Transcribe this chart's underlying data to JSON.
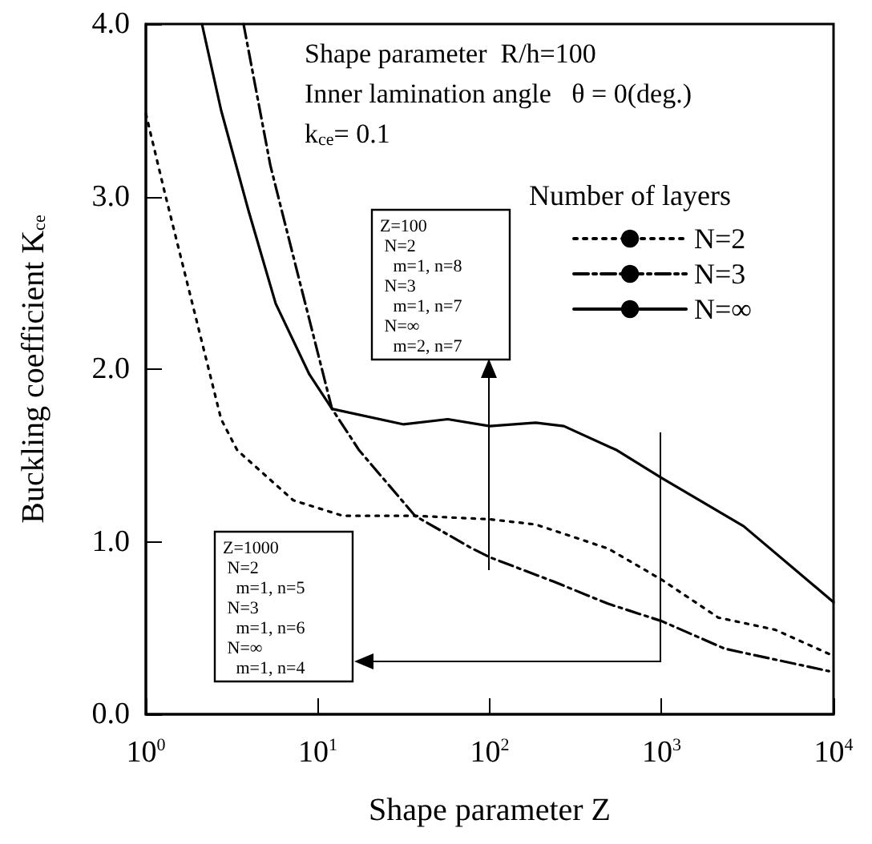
{
  "chart_data": {
    "type": "line",
    "xlabel": "Shape parameter Z",
    "ylabel": "Buckling coefficient K$_{ce}$",
    "legend_title": "Number of layers",
    "annotations": [
      "Shape parameter  R/h=100",
      "Inner lamination angle   θ = 0(deg.)",
      "k$_{ce}$= 0.1",
      "Z=100\n N=2\n   m=1, n=8\n N=3\n   m=1, n=7\n N=∞\n   m=2, n=7",
      "Z=1000\n N=2\n   m=1, n=5\n N=3\n   m=1, n=6\n N=∞\n   m=1, n=4"
    ],
    "series": [
      {
        "name": "N=2",
        "color": "#000000",
        "line_style": "dotted",
        "x": [
          1,
          1.29,
          2.74,
          3.4,
          7.2,
          14,
          37,
          100,
          185,
          490,
          1000,
          2140,
          4570,
          9400
        ],
        "values": [
          3.48,
          3.02,
          1.71,
          1.53,
          1.24,
          1.15,
          1.15,
          1.13,
          1.1,
          0.96,
          0.78,
          0.56,
          0.49,
          0.35
        ]
      },
      {
        "name": "N=3",
        "color": "#000000",
        "line_style": "dashed",
        "x": [
          3.7,
          5.3,
          7.7,
          12.1,
          17.4,
          36.8,
          76,
          100,
          234,
          490,
          1000,
          2330,
          9400
        ],
        "values": [
          4.0,
          3.18,
          2.54,
          1.77,
          1.53,
          1.15,
          0.97,
          0.91,
          0.77,
          0.64,
          0.54,
          0.38,
          0.25
        ]
      },
      {
        "name": "N=∞",
        "color": "#000000",
        "line_style": "solid",
        "x": [
          2.12,
          2.74,
          3.95,
          5.69,
          8.93,
          12.1,
          31.6,
          57,
          100,
          185,
          270,
          550,
          1000,
          3000,
          10000
        ],
        "values": [
          4.0,
          3.5,
          2.92,
          2.38,
          1.97,
          1.77,
          1.68,
          1.71,
          1.67,
          1.69,
          1.67,
          1.53,
          1.37,
          1.09,
          0.65
        ]
      }
    ],
    "xlim": [
      1,
      10000
    ],
    "xticks": [
      {
        "value": 1,
        "label": "10$^{0}$"
      },
      {
        "value": 10,
        "label": "10$^{1}$"
      },
      {
        "value": 100,
        "label": "10$^{2}$"
      },
      {
        "value": 1000,
        "label": "10$^{3}$"
      },
      {
        "value": 10000,
        "label": "10$^{4}$"
      }
    ],
    "ylim": [
      0,
      4
    ],
    "yticks": [
      {
        "value": 0,
        "label": "0.0"
      },
      {
        "value": 1,
        "label": "1.0"
      },
      {
        "value": 2,
        "label": "2.0"
      },
      {
        "value": 3,
        "label": "3.0"
      },
      {
        "value": 4,
        "label": "4.0"
      }
    ],
    "log": "x",
    "legend": "top right",
    "marker": "none"
  }
}
